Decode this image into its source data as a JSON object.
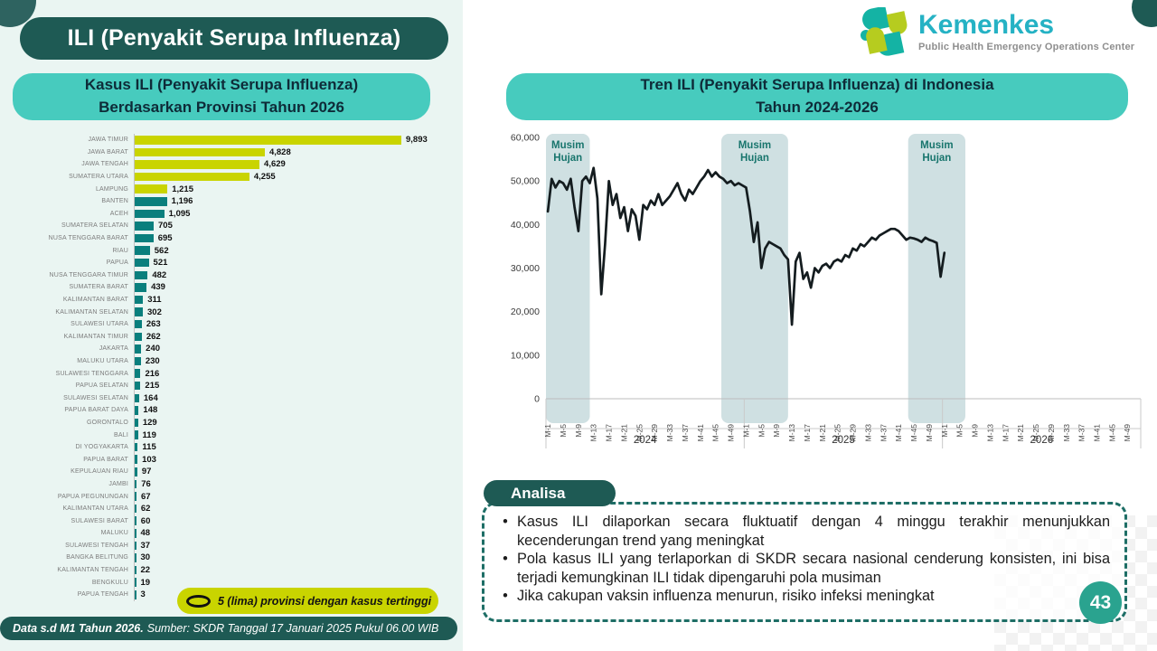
{
  "page": {
    "number": "43"
  },
  "header": {
    "main_title": "ILI (Penyakit Serupa Influenza)",
    "logo": {
      "brand": "Kemenkes",
      "tagline": "Public Health Emergency Operations Center"
    }
  },
  "bar_panel": {
    "title_line1": "Kasus ILI (Penyakit Serupa Influenza)",
    "title_line2": "Berdasarkan Provinsi Tahun 2026",
    "legend": "5 (lima) provinsi dengan kasus tertinggi",
    "footer_bold": "Data s.d M1 Tahun 2026.",
    "footer_rest": "Sumber: SKDR Tanggal 17 Januari 2025 Pukul 06.00 WIB"
  },
  "trend_panel": {
    "title_line1": "Tren ILI (Penyakit Serupa Influenza) di Indonesia",
    "title_line2": "Tahun 2024-2026"
  },
  "analysis": {
    "title": "Analisa",
    "bullets": [
      "Kasus ILI dilaporkan secara fluktuatif dengan 4 minggu terakhir menunjukkan kecenderungan trend yang meningkat",
      "Pola kasus ILI yang terlaporkan di SKDR secara nasional cenderung konsisten, ini bisa terjadi kemungkinan ILI tidak dipengaruhi pola musiman",
      "Jika cakupan vaksin influenza menurun, risiko infeksi meningkat"
    ]
  },
  "colors": {
    "dark_teal": "#1e5a54",
    "turquoise": "#47cbbe",
    "bar_teal": "#0a7f7d",
    "bar_highlight": "#c9d400",
    "band_fill": "#cfe0e2",
    "band_label": "#18756d",
    "line": "#141c1f",
    "brand_cyan": "#25b2c4",
    "page_circle": "#2aa38f",
    "left_bg": "#eaf5f2"
  },
  "chart_data": [
    {
      "type": "bar",
      "orientation": "horizontal",
      "title": "Kasus ILI (Penyakit Serupa Influenza) Berdasarkan Provinsi Tahun 2026",
      "highlight_top_n": 5,
      "legend": "5 (lima) provinsi dengan kasus tertinggi",
      "categories": [
        "JAWA TIMUR",
        "JAWA BARAT",
        "JAWA TENGAH",
        "SUMATERA UTARA",
        "LAMPUNG",
        "BANTEN",
        "ACEH",
        "SUMATERA SELATAN",
        "NUSA TENGGARA BARAT",
        "RIAU",
        "PAPUA",
        "NUSA TENGGARA TIMUR",
        "SUMATERA BARAT",
        "KALIMANTAN BARAT",
        "KALIMANTAN SELATAN",
        "SULAWESI UTARA",
        "KALIMANTAN TIMUR",
        "JAKARTA",
        "MALUKU UTARA",
        "SULAWESI TENGGARA",
        "PAPUA SELATAN",
        "SULAWESI SELATAN",
        "PAPUA BARAT DAYA",
        "GORONTALO",
        "BALI",
        "DI YOGYAKARTA",
        "PAPUA BARAT",
        "KEPULAUAN RIAU",
        "JAMBI",
        "PAPUA PEGUNUNGAN",
        "KALIMANTAN UTARA",
        "SULAWESI BARAT",
        "MALUKU",
        "SULAWESI TENGAH",
        "BANGKA BELITUNG",
        "KALIMANTAN TENGAH",
        "BENGKULU",
        "PAPUA TENGAH"
      ],
      "values": [
        9893,
        4828,
        4629,
        4255,
        1215,
        1196,
        1095,
        705,
        695,
        562,
        521,
        482,
        439,
        311,
        302,
        263,
        262,
        240,
        230,
        216,
        215,
        164,
        148,
        129,
        119,
        115,
        103,
        97,
        76,
        67,
        62,
        60,
        48,
        37,
        30,
        22,
        19,
        3
      ]
    },
    {
      "type": "line",
      "title": "Tren ILI (Penyakit Serupa Influenza) di Indonesia Tahun 2024-2026",
      "ylim": [
        0,
        60000
      ],
      "yticks": [
        "0",
        "10,000",
        "20,000",
        "30,000",
        "40,000",
        "50,000",
        "60,000"
      ],
      "x_tick_labels": [
        "M-1",
        "M-5",
        "M-9",
        "M-13",
        "M-17",
        "M-21",
        "M-25",
        "M-29",
        "M-33",
        "M-37",
        "M-41",
        "M-45",
        "M-49"
      ],
      "weeks_per_year": 52,
      "years": [
        "2024",
        "2025",
        "2026"
      ],
      "band_label_line1": "Musim",
      "band_label_line2": "Hujan",
      "rainy_season_bands": [
        {
          "start_week": 0,
          "end_week": 11.5
        },
        {
          "start_week": 46,
          "end_week": 63.5
        },
        {
          "start_week": 95,
          "end_week": 110
        }
      ],
      "series": [
        {
          "year": "2024",
          "values": [
            43000,
            50500,
            48500,
            50000,
            49500,
            48000,
            50500,
            44000,
            38500,
            50000,
            51000,
            49500,
            53000,
            46000,
            24000,
            35500,
            50000,
            44500,
            47000,
            41500,
            44000,
            38500,
            43500,
            42000,
            36500,
            44500,
            43500,
            45500,
            44500,
            47000,
            44500,
            45500,
            46500,
            48000,
            49500,
            47000,
            45500,
            48000,
            47000,
            48500,
            50000,
            51000,
            52500,
            51000,
            52000,
            51000,
            50500,
            49500,
            50000,
            49000,
            49500,
            49000
          ]
        },
        {
          "year": "2025",
          "values": [
            48500,
            43000,
            36000,
            40500,
            30000,
            34500,
            36000,
            35500,
            35000,
            34500,
            33000,
            32000,
            17000,
            31500,
            33500,
            27500,
            29000,
            25500,
            30000,
            29000,
            30500,
            31000,
            30000,
            31500,
            32000,
            31500,
            33000,
            32500,
            34500,
            34000,
            35500,
            35000,
            36000,
            37000,
            36500,
            37500,
            38000,
            38500,
            39000,
            39000,
            38500,
            37500,
            36500,
            37000,
            36800,
            36500,
            36000,
            37000,
            36500,
            36200,
            35800,
            28000
          ]
        },
        {
          "year": "2026",
          "values": [
            33500
          ]
        }
      ]
    }
  ]
}
